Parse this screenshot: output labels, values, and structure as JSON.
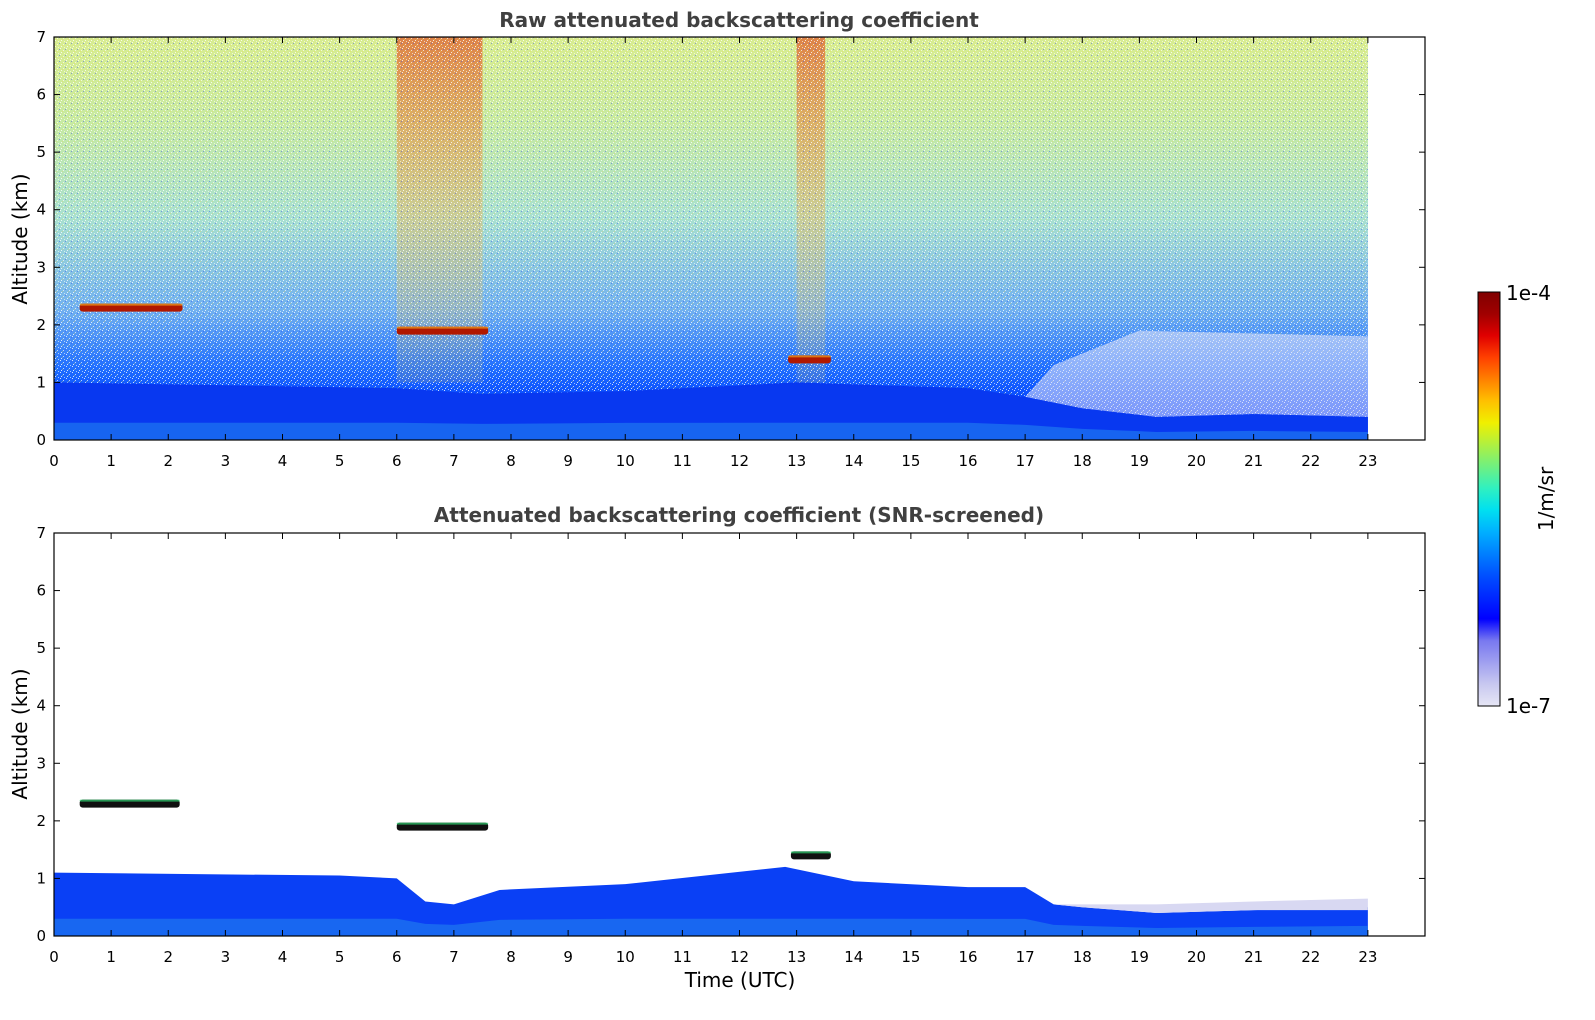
{
  "chart_data": [
    {
      "type": "heatmap",
      "title": "Raw attenuated backscattering coefficient",
      "xlabel": "",
      "ylabel": "Altitude (km)",
      "xlim": [
        0,
        24
      ],
      "ylim": [
        0,
        7
      ],
      "xticks": [
        "0",
        "1",
        "2",
        "3",
        "4",
        "5",
        "6",
        "7",
        "8",
        "9",
        "10",
        "11",
        "12",
        "13",
        "14",
        "15",
        "16",
        "17",
        "18",
        "19",
        "20",
        "21",
        "22",
        "23"
      ],
      "yticks": [
        "0",
        "1",
        "2",
        "3",
        "4",
        "5",
        "6",
        "7"
      ],
      "data_end_time": 23,
      "boundary_layer_top_km": [
        [
          0,
          1.0
        ],
        [
          6,
          0.9
        ],
        [
          7.5,
          0.8
        ],
        [
          10,
          0.85
        ],
        [
          13,
          1.0
        ],
        [
          16,
          0.9
        ],
        [
          17,
          0.75
        ],
        [
          18,
          0.55
        ],
        [
          19.3,
          0.4
        ],
        [
          21,
          0.45
        ],
        [
          23,
          0.4
        ]
      ],
      "cloud_layers": [
        {
          "t_start": 0.45,
          "t_end": 2.25,
          "alt_km": 2.3
        },
        {
          "t_start": 6.0,
          "t_end": 7.6,
          "alt_km": 1.9
        },
        {
          "t_start": 12.85,
          "t_end": 13.6,
          "alt_km": 1.4
        }
      ],
      "high_noise_periods": [
        [
          6.0,
          7.5
        ],
        [
          13.0,
          13.5
        ]
      ]
    },
    {
      "type": "heatmap",
      "title": "Attenuated backscattering coefficient (SNR-screened)",
      "xlabel": "Time (UTC)",
      "ylabel": "Altitude (km)",
      "xlim": [
        0,
        24
      ],
      "ylim": [
        0,
        7
      ],
      "xticks": [
        "0",
        "1",
        "2",
        "3",
        "4",
        "5",
        "6",
        "7",
        "8",
        "9",
        "10",
        "11",
        "12",
        "13",
        "14",
        "15",
        "16",
        "17",
        "18",
        "19",
        "20",
        "21",
        "22",
        "23"
      ],
      "yticks": [
        "0",
        "1",
        "2",
        "3",
        "4",
        "5",
        "6",
        "7"
      ],
      "data_end_time": 23,
      "boundary_layer_top_km": [
        [
          0,
          1.1
        ],
        [
          5,
          1.05
        ],
        [
          6,
          1.0
        ],
        [
          6.5,
          0.6
        ],
        [
          7,
          0.55
        ],
        [
          7.8,
          0.8
        ],
        [
          10,
          0.9
        ],
        [
          12.8,
          1.2
        ],
        [
          14,
          0.95
        ],
        [
          16,
          0.85
        ],
        [
          17,
          0.85
        ],
        [
          17.5,
          0.55
        ],
        [
          18,
          0.5
        ],
        [
          19.3,
          0.4
        ],
        [
          21,
          0.45
        ],
        [
          23,
          0.5
        ]
      ],
      "cloud_layers": [
        {
          "t_start": 0.45,
          "t_end": 2.2,
          "alt_km": 2.3
        },
        {
          "t_start": 6.0,
          "t_end": 7.6,
          "alt_km": 1.9
        },
        {
          "t_start": 12.9,
          "t_end": 13.6,
          "alt_km": 1.4
        }
      ]
    }
  ],
  "colorbar": {
    "min_label": "1e-7",
    "max_label": "1e-4",
    "unit_label": "1/m/sr",
    "scale": "log",
    "colors": [
      "#e6e6f5",
      "#c8c8f0",
      "#a0a0f0",
      "#7878f0",
      "#0000ff",
      "#0028ff",
      "#0050ff",
      "#0080ff",
      "#00b0ff",
      "#00e0f0",
      "#30f0c0",
      "#70f080",
      "#b0f040",
      "#f0f000",
      "#ffc000",
      "#ff8000",
      "#ff4000",
      "#e00000",
      "#a00000",
      "#800000"
    ]
  }
}
